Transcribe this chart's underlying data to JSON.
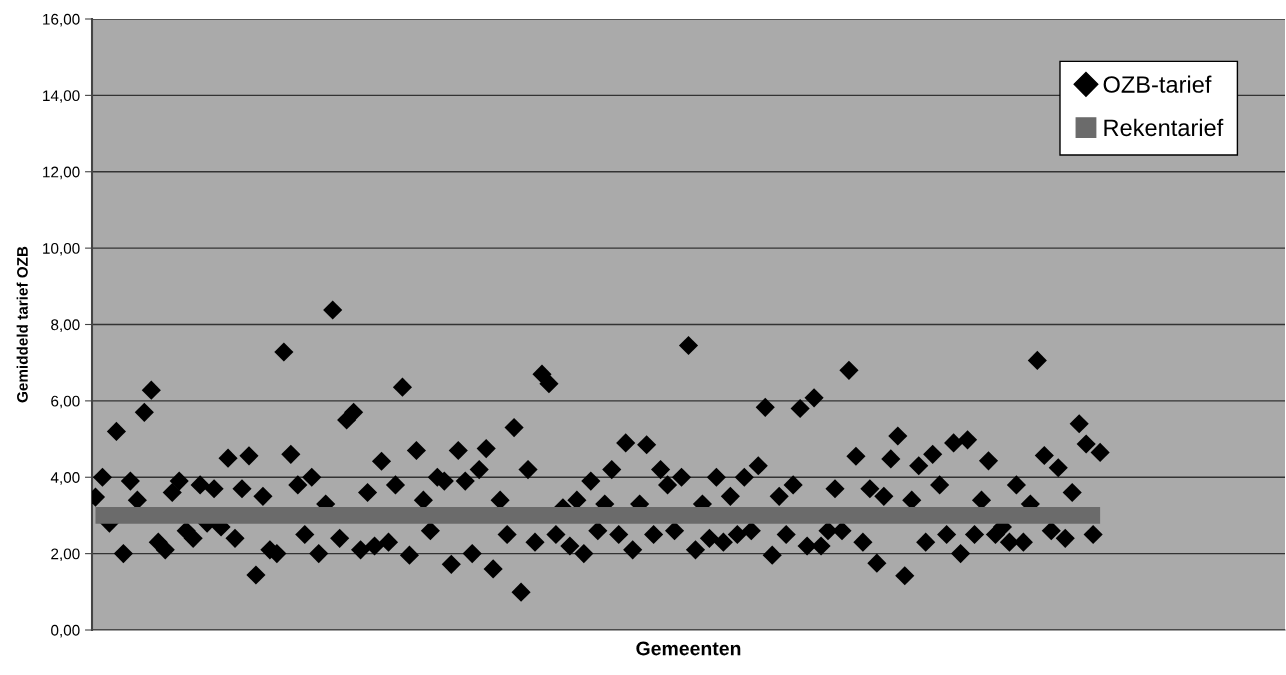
{
  "chart_data": {
    "type": "scatter",
    "xlabel": "Gemeenten",
    "ylabel": "Gemiddeld tarief OZB",
    "categories": [
      null,
      null,
      null,
      null,
      null,
      null,
      null,
      null,
      null,
      null,
      null,
      null,
      null,
      null,
      null,
      null,
      null,
      null,
      null,
      null,
      null,
      null,
      null,
      null,
      null,
      null,
      null,
      null,
      null,
      null,
      null,
      null,
      null,
      null,
      null,
      null,
      null,
      null,
      null,
      null,
      null,
      null,
      null,
      null,
      null,
      null,
      null,
      null,
      null,
      null,
      null,
      null,
      null,
      null,
      null,
      null,
      null,
      null,
      null,
      null,
      null,
      null,
      null,
      null,
      null,
      null,
      null,
      null,
      null,
      null,
      null,
      null,
      null,
      null,
      null,
      null,
      null,
      null,
      null,
      null,
      null,
      null,
      null,
      null,
      null,
      null,
      null,
      null,
      null,
      null,
      null,
      null,
      null,
      null,
      null,
      null,
      null,
      null,
      null,
      null,
      null,
      null,
      null,
      null,
      null,
      null,
      null,
      null,
      null,
      null,
      null,
      null,
      null,
      null,
      null,
      null,
      null,
      null,
      null,
      null,
      null,
      null,
      null,
      null,
      null,
      null,
      null,
      null,
      null,
      null,
      null,
      null,
      null,
      null,
      null,
      null,
      null,
      null,
      null,
      null,
      null,
      null,
      null,
      null,
      null,
      null,
      null,
      null,
      null,
      null,
      null,
      null,
      null,
      null,
      null,
      null,
      null,
      null,
      null,
      null,
      null,
      null,
      null,
      null,
      null,
      null,
      null,
      null,
      null,
      null,
      null
    ],
    "series": [
      {
        "name": "OZB-tarief",
        "marker": "diamond",
        "color": "#000000",
        "values": [
          3.48,
          4.0,
          2.8,
          5.2,
          2.0,
          3.9,
          3.4,
          5.7,
          6.28,
          2.3,
          2.1,
          3.6,
          3.9,
          2.6,
          2.4,
          3.8,
          2.8,
          3.7,
          2.7,
          4.5,
          2.4,
          3.7,
          4.56,
          1.44,
          3.5,
          2.1,
          2.0,
          7.28,
          4.6,
          3.8,
          2.5,
          4.0,
          2.0,
          3.3,
          8.38,
          2.4,
          5.5,
          5.7,
          2.1,
          3.6,
          2.2,
          4.42,
          2.3,
          3.8,
          6.36,
          1.96,
          4.7,
          3.4,
          2.6,
          4.0,
          3.9,
          1.72,
          4.7,
          3.9,
          2.0,
          4.2,
          4.75,
          1.6,
          3.4,
          2.5,
          5.3,
          0.99,
          4.2,
          2.3,
          6.7,
          6.45,
          2.5,
          3.2,
          2.2,
          3.4,
          2.0,
          3.9,
          2.6,
          3.3,
          4.2,
          2.5,
          4.9,
          2.1,
          3.3,
          4.85,
          2.5,
          4.2,
          3.8,
          2.6,
          4.0,
          7.45,
          2.1,
          3.3,
          2.4,
          4.0,
          2.3,
          3.5,
          2.5,
          4.0,
          2.6,
          4.3,
          5.83,
          1.96,
          3.5,
          2.5,
          3.8,
          5.8,
          2.2,
          6.08,
          2.2,
          2.6,
          3.7,
          2.6,
          6.8,
          4.55,
          2.3,
          3.7,
          1.75,
          3.5,
          4.48,
          5.08,
          1.42,
          3.4,
          4.3,
          2.3,
          4.6,
          3.8,
          2.5,
          4.9,
          2.0,
          4.98,
          2.5,
          3.4,
          4.43,
          2.5,
          2.7,
          2.3,
          3.8,
          2.3,
          3.3,
          7.06,
          4.57,
          2.6,
          4.25,
          2.4,
          3.6,
          5.4,
          4.87,
          2.5,
          4.65,
          null,
          null,
          null,
          null,
          null,
          null,
          null,
          null,
          null,
          null,
          null,
          null,
          null,
          null,
          null,
          null,
          null,
          null,
          null,
          null,
          null,
          null,
          null,
          null,
          null,
          null
        ]
      },
      {
        "name": "Rekentarief",
        "type": "line",
        "marker": "none",
        "color": "#6b6b6b",
        "values": [
          3.0,
          3.0,
          3.0,
          3.0,
          3.0,
          3.0,
          3.0,
          3.0,
          3.0,
          3.0,
          3.0,
          3.0,
          3.0,
          3.0,
          3.0,
          3.0,
          3.0,
          3.0,
          3.0,
          3.0,
          3.0,
          3.0,
          3.0,
          3.0,
          3.0,
          3.0,
          3.0,
          3.0,
          3.0,
          3.0,
          3.0,
          3.0,
          3.0,
          3.0,
          3.0,
          3.0,
          3.0,
          3.0,
          3.0,
          3.0,
          3.0,
          3.0,
          3.0,
          3.0,
          3.0,
          3.0,
          3.0,
          3.0,
          3.0,
          3.0,
          3.0,
          3.0,
          3.0,
          3.0,
          3.0,
          3.0,
          3.0,
          3.0,
          3.0,
          3.0,
          3.0,
          3.0,
          3.0,
          3.0,
          3.0,
          3.0,
          3.0,
          3.0,
          3.0,
          3.0,
          3.0,
          3.0,
          3.0,
          3.0,
          3.0,
          3.0,
          3.0,
          3.0,
          3.0,
          3.0,
          3.0,
          3.0,
          3.0,
          3.0,
          3.0,
          3.0,
          3.0,
          3.0,
          3.0,
          3.0,
          3.0,
          3.0,
          3.0,
          3.0,
          3.0,
          3.0,
          3.0,
          3.0,
          3.0,
          3.0,
          3.0,
          3.0,
          3.0,
          3.0,
          3.0,
          3.0,
          3.0,
          3.0,
          3.0,
          3.0,
          3.0,
          3.0,
          3.0,
          3.0,
          3.0,
          3.0,
          3.0,
          3.0,
          3.0,
          3.0,
          3.0,
          3.0,
          3.0,
          3.0,
          3.0,
          3.0,
          3.0,
          3.0,
          3.0,
          3.0,
          3.0,
          3.0,
          3.0,
          3.0,
          3.0,
          3.0,
          3.0,
          3.0,
          3.0,
          3.0,
          3.0,
          3.0,
          3.0,
          3.0,
          3.0,
          null,
          null,
          null,
          null,
          null,
          null,
          null,
          null,
          null,
          null,
          null,
          null,
          null,
          null,
          null,
          null,
          null,
          null,
          null,
          null,
          null,
          null,
          null,
          null,
          null,
          null
        ]
      }
    ],
    "ylim": [
      0,
      16
    ],
    "yticks": [
      {
        "value": 0,
        "label": "0,00"
      },
      {
        "value": 2,
        "label": "2,00"
      },
      {
        "value": 4,
        "label": "4,00"
      },
      {
        "value": 6,
        "label": "6,00"
      },
      {
        "value": 8,
        "label": "8,00"
      },
      {
        "value": 10,
        "label": "10,00"
      },
      {
        "value": 12,
        "label": "12,00"
      },
      {
        "value": 14,
        "label": "14,00"
      },
      {
        "value": 16,
        "label": "16,00"
      }
    ],
    "grid": "y",
    "legend": "top right",
    "tick_labels": "y"
  }
}
